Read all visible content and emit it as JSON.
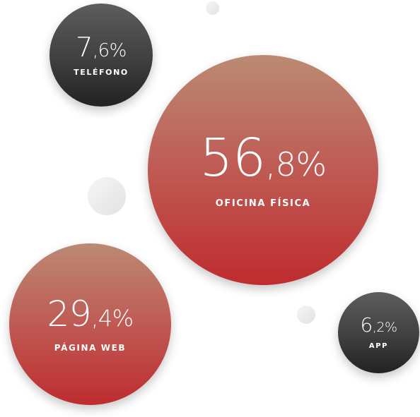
{
  "chart_data": {
    "type": "bubble",
    "series": [
      {
        "name": "OFICINA FÍSICA",
        "value": 56.8,
        "display_int": "56",
        "display_dec": ",8%",
        "color": "#bf3a36"
      },
      {
        "name": "PÁGINA WEB",
        "value": 29.4,
        "display_int": "29",
        "display_dec": ",4%",
        "color": "#bf3a36"
      },
      {
        "name": "TELÉFONO",
        "value": 7.6,
        "display_int": "7",
        "display_dec": ",6%",
        "color": "#3c3c3c"
      },
      {
        "name": "APP",
        "value": 6.2,
        "display_int": "6",
        "display_dec": ",2%",
        "color": "#3c3c3c"
      }
    ],
    "colors": {
      "red_top": "#bb8a73",
      "red_bottom": "#bf2c2f",
      "dark_top": "#5d5d5d",
      "dark_bottom": "#222222"
    }
  }
}
